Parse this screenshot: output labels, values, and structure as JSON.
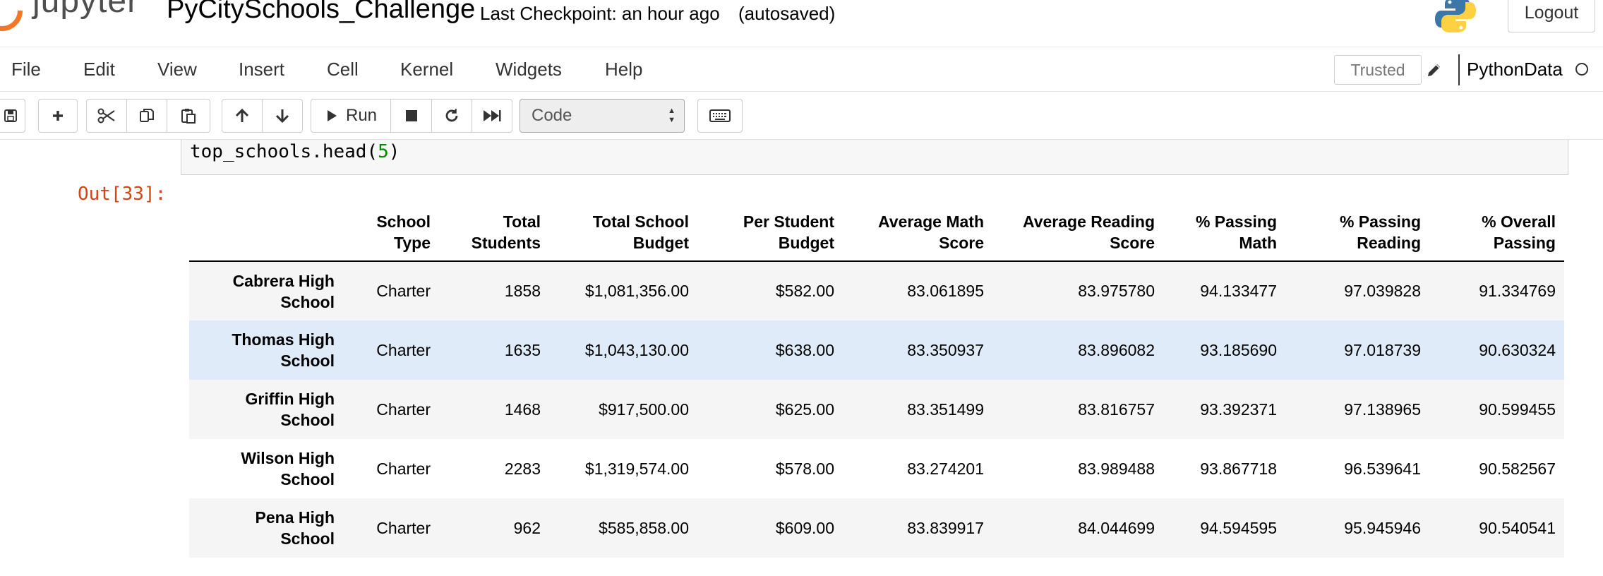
{
  "header": {
    "logo_text": "jupyter",
    "notebook_title": "PyCitySchools_Challenge",
    "checkpoint": "Last Checkpoint: an hour ago",
    "autosave": "(autosaved)",
    "logout_label": "Logout"
  },
  "menu": {
    "items": [
      "File",
      "Edit",
      "View",
      "Insert",
      "Cell",
      "Kernel",
      "Widgets",
      "Help"
    ],
    "trusted_label": "Trusted",
    "kernel_name": "PythonData"
  },
  "toolbar": {
    "run_label": "Run",
    "cell_type": "Code"
  },
  "cell": {
    "code_line": "top_schools.head(",
    "code_arg": "5",
    "code_close": ")",
    "out_prompt": "Out[33]:"
  },
  "table": {
    "columns": [
      [
        "School",
        "Type"
      ],
      [
        "Total",
        "Students"
      ],
      [
        "Total School",
        "Budget"
      ],
      [
        "Per Student",
        "Budget"
      ],
      [
        "Average Math",
        "Score"
      ],
      [
        "Average Reading",
        "Score"
      ],
      [
        "% Passing",
        "Math"
      ],
      [
        "% Passing",
        "Reading"
      ],
      [
        "% Overall",
        "Passing"
      ]
    ],
    "rows": [
      {
        "index": [
          "Cabrera High",
          "School"
        ],
        "cells": [
          "Charter",
          "1858",
          "$1,081,356.00",
          "$582.00",
          "83.061895",
          "83.975780",
          "94.133477",
          "97.039828",
          "91.334769"
        ]
      },
      {
        "index": [
          "Thomas High",
          "School"
        ],
        "cells": [
          "Charter",
          "1635",
          "$1,043,130.00",
          "$638.00",
          "83.350937",
          "83.896082",
          "93.185690",
          "97.018739",
          "90.630324"
        ]
      },
      {
        "index": [
          "Griffin High",
          "School"
        ],
        "cells": [
          "Charter",
          "1468",
          "$917,500.00",
          "$625.00",
          "83.351499",
          "83.816757",
          "93.392371",
          "97.138965",
          "90.599455"
        ]
      },
      {
        "index": [
          "Wilson High",
          "School"
        ],
        "cells": [
          "Charter",
          "2283",
          "$1,319,574.00",
          "$578.00",
          "83.274201",
          "83.989488",
          "93.867718",
          "96.539641",
          "90.582567"
        ]
      },
      {
        "index": [
          "Pena High",
          "School"
        ],
        "cells": [
          "Charter",
          "962",
          "$585,858.00",
          "$609.00",
          "83.839917",
          "84.044699",
          "94.594595",
          "95.945946",
          "90.540541"
        ]
      }
    ],
    "highlighted_row": 1
  },
  "icons": {
    "save": "save-icon",
    "add": "plus-icon",
    "cut": "scissors-icon",
    "copy": "copy-icon",
    "paste": "paste-icon",
    "up": "arrow-up-icon",
    "down": "arrow-down-icon",
    "run": "play-icon",
    "stop": "stop-icon",
    "restart": "restart-icon",
    "run_all": "fast-forward-icon",
    "keyboard": "keyboard-icon",
    "edit": "pencil-icon"
  },
  "colors": {
    "jupyter_orange": "#f37726",
    "out_prompt": "#d84315",
    "highlight_row": "#dfebf9",
    "stripe_row": "#f5f5f5"
  }
}
